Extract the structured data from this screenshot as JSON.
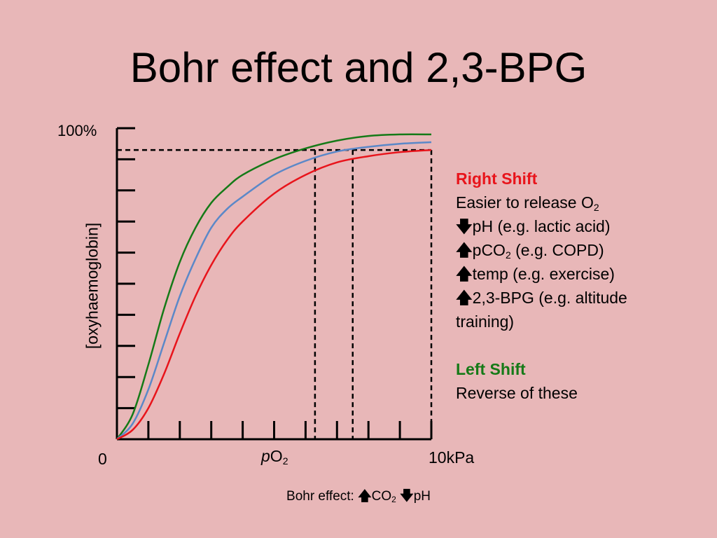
{
  "title": "Bohr effect and 2,3-BPG",
  "chart_data": {
    "type": "line",
    "xlabel_italic": "p",
    "xlabel_main": "O",
    "xlabel_sub": "2",
    "ylabel": "[oxyhaemoglobin]",
    "x_origin_label": "0",
    "x_max_label": "10kPa",
    "y_max_label": "100%",
    "xlim": [
      0,
      10
    ],
    "ylim": [
      0,
      100
    ],
    "grid": false,
    "x_tick_count": 10,
    "y_tick_count": 10,
    "series": [
      {
        "color": "#157a17",
        "x": [
          0,
          0.5,
          1,
          1.5,
          2,
          2.5,
          3,
          3.5,
          4,
          5,
          6,
          7,
          8,
          9,
          10
        ],
        "y": [
          0,
          8,
          24,
          42,
          57,
          68,
          76,
          81,
          85,
          90,
          93.5,
          96,
          97.5,
          98,
          98
        ]
      },
      {
        "color": "#5b88c8",
        "x": [
          0,
          0.5,
          1,
          1.5,
          2,
          2.5,
          3,
          3.5,
          4,
          5,
          6,
          7,
          8,
          9,
          10
        ],
        "y": [
          0,
          5,
          16,
          31,
          46,
          58,
          68,
          74,
          78,
          85,
          89.5,
          92.5,
          94,
          95,
          95.5
        ]
      },
      {
        "color": "#e8141b",
        "x": [
          0,
          0.5,
          1,
          1.5,
          2,
          2.5,
          3,
          3.5,
          4,
          5,
          6,
          7,
          8,
          9,
          10
        ],
        "y": [
          0,
          3,
          10,
          21,
          34,
          46,
          56,
          64,
          70,
          79,
          85,
          89,
          91,
          92.3,
          93
        ]
      }
    ],
    "reference_lines": [
      {
        "y": 93,
        "x_end": 10
      },
      {
        "x": 6.3,
        "y_top": 93
      },
      {
        "x": 7.5,
        "y_top": 93
      },
      {
        "x": 10,
        "y_top": 93
      }
    ]
  },
  "legend": {
    "right_header": "Right Shift",
    "right_line1_text": "Easier to release O",
    "right_line1_sub": "2",
    "down_arrow": "🡇",
    "up_arrow": "🡅",
    "right_line2": "pH (e.g. lactic acid)",
    "right_line3_pre": "pCO",
    "right_line3_sub": "2",
    "right_line3_post": " (e.g. COPD)",
    "right_line4": "temp (e.g. exercise)",
    "right_line5": "2,3-BPG (e.g. altitude",
    "right_line6": "training)",
    "left_header": "Left Shift",
    "left_line1": "Reverse of these"
  },
  "caption": {
    "prefix": "Bohr effect: ",
    "co": "CO",
    "co_sub": "2",
    "ph": "pH"
  }
}
